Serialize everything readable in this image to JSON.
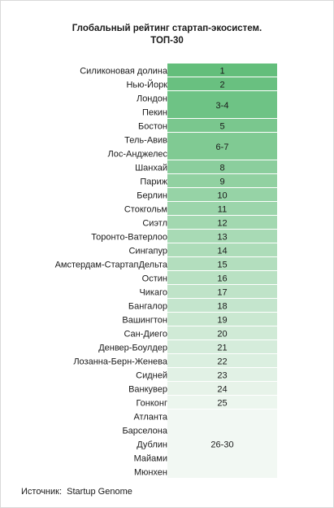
{
  "title_line1": "Глобальный рейтинг стартап-экосистем.",
  "title_line2": "ТОП-30",
  "source_label": "Источник:",
  "source_value": "Startup Genome",
  "colors": {
    "top": "#63be7b",
    "bottom": "#f2f8f3"
  },
  "chart_data": {
    "type": "table",
    "title": "Глобальный рейтинг стартап-экосистем. ТОП-30",
    "rows": [
      {
        "cities": [
          "Силиконовая долина"
        ],
        "rank_label": "1",
        "rank": 1
      },
      {
        "cities": [
          "Нью-Йорк"
        ],
        "rank_label": "2",
        "rank": 2
      },
      {
        "cities": [
          "Лондон",
          "Пекин"
        ],
        "rank_label": "3-4",
        "rank": 3
      },
      {
        "cities": [
          "Бостон"
        ],
        "rank_label": "5",
        "rank": 5
      },
      {
        "cities": [
          "Тель-Авив",
          "Лос-Анджелес"
        ],
        "rank_label": "6-7",
        "rank": 6
      },
      {
        "cities": [
          "Шанхай"
        ],
        "rank_label": "8",
        "rank": 8
      },
      {
        "cities": [
          "Париж"
        ],
        "rank_label": "9",
        "rank": 9
      },
      {
        "cities": [
          "Берлин"
        ],
        "rank_label": "10",
        "rank": 10
      },
      {
        "cities": [
          "Стокгольм"
        ],
        "rank_label": "11",
        "rank": 11
      },
      {
        "cities": [
          "Сиэтл"
        ],
        "rank_label": "12",
        "rank": 12
      },
      {
        "cities": [
          "Торонто-Ватерлоо"
        ],
        "rank_label": "13",
        "rank": 13
      },
      {
        "cities": [
          "Сингапур"
        ],
        "rank_label": "14",
        "rank": 14
      },
      {
        "cities": [
          "Амстердам-СтартапДельта"
        ],
        "rank_label": "15",
        "rank": 15
      },
      {
        "cities": [
          "Остин"
        ],
        "rank_label": "16",
        "rank": 16
      },
      {
        "cities": [
          "Чикаго"
        ],
        "rank_label": "17",
        "rank": 17
      },
      {
        "cities": [
          "Бангалор"
        ],
        "rank_label": "18",
        "rank": 18
      },
      {
        "cities": [
          "Вашингтон"
        ],
        "rank_label": "19",
        "rank": 19
      },
      {
        "cities": [
          "Сан-Диего"
        ],
        "rank_label": "20",
        "rank": 20
      },
      {
        "cities": [
          "Денвер-Боулдер"
        ],
        "rank_label": "21",
        "rank": 21
      },
      {
        "cities": [
          "Лозанна-Берн-Женева"
        ],
        "rank_label": "22",
        "rank": 22
      },
      {
        "cities": [
          "Сидней"
        ],
        "rank_label": "23",
        "rank": 23
      },
      {
        "cities": [
          "Ванкувер"
        ],
        "rank_label": "24",
        "rank": 24
      },
      {
        "cities": [
          "Гонконг"
        ],
        "rank_label": "25",
        "rank": 25
      },
      {
        "cities": [
          "Атланта",
          "Барселона",
          "Дублин",
          "Майами",
          "Мюнхен"
        ],
        "rank_label": "26-30",
        "rank": 26
      }
    ]
  }
}
